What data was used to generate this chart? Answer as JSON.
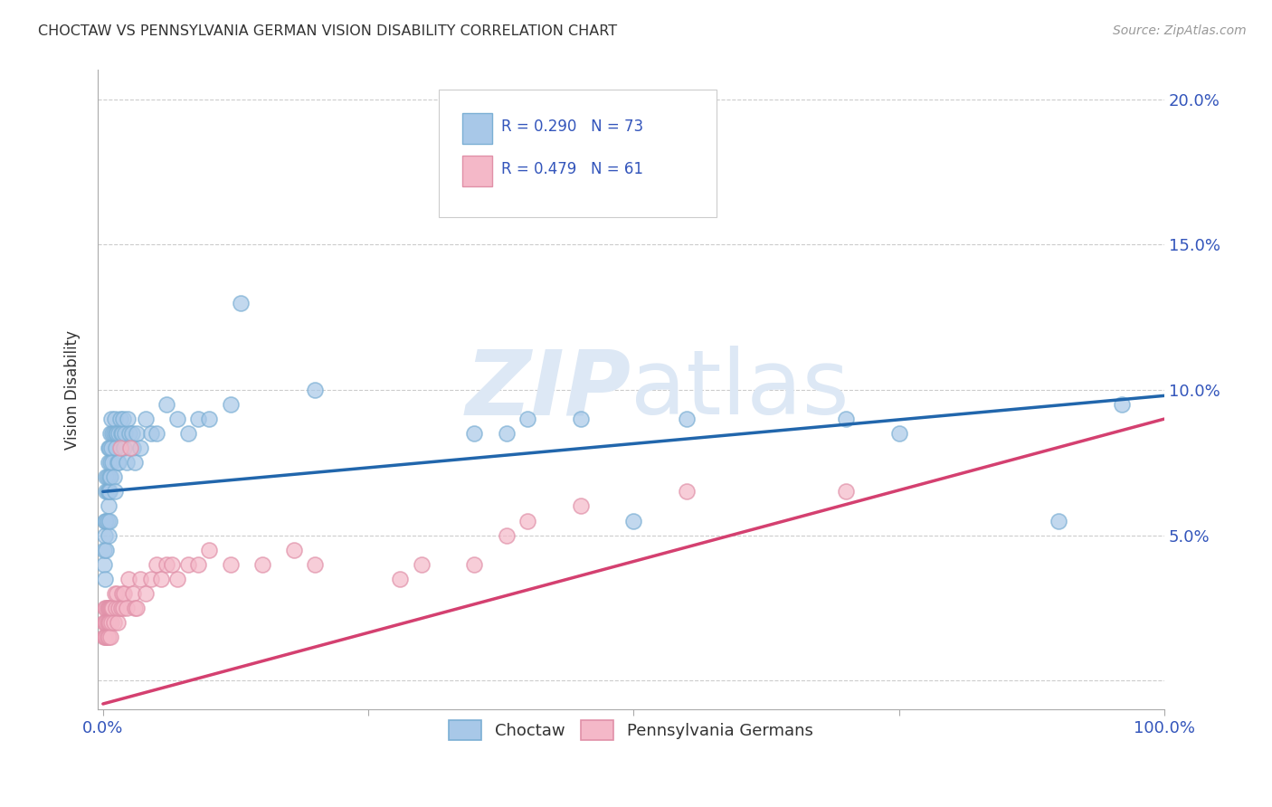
{
  "title": "CHOCTAW VS PENNSYLVANIA GERMAN VISION DISABILITY CORRELATION CHART",
  "source": "Source: ZipAtlas.com",
  "ylabel": "Vision Disability",
  "xlim": [
    -0.005,
    1.0
  ],
  "ylim": [
    -0.01,
    0.21
  ],
  "choctaw_R": 0.29,
  "choctaw_N": 73,
  "pg_R": 0.479,
  "pg_N": 61,
  "choctaw_color": "#a8c8e8",
  "choctaw_edge": "#7bafd4",
  "pg_color": "#f4b8c8",
  "pg_edge": "#e090a8",
  "choctaw_line_color": "#2166ac",
  "pg_line_color": "#d44070",
  "watermark_color": "#dde8f5",
  "background_color": "#ffffff",
  "grid_color": "#cccccc",
  "axis_label_color": "#3355bb",
  "choctaw_intercept": 0.065,
  "choctaw_slope": 0.033,
  "pg_intercept": -0.008,
  "pg_slope": 0.098,
  "choctaw_x": [
    0.001,
    0.001,
    0.002,
    0.002,
    0.002,
    0.003,
    0.003,
    0.003,
    0.003,
    0.004,
    0.004,
    0.004,
    0.005,
    0.005,
    0.005,
    0.005,
    0.005,
    0.006,
    0.006,
    0.006,
    0.006,
    0.007,
    0.007,
    0.007,
    0.008,
    0.008,
    0.009,
    0.009,
    0.01,
    0.01,
    0.011,
    0.011,
    0.012,
    0.012,
    0.013,
    0.014,
    0.015,
    0.015,
    0.016,
    0.017,
    0.018,
    0.019,
    0.02,
    0.021,
    0.022,
    0.023,
    0.025,
    0.027,
    0.028,
    0.03,
    0.032,
    0.035,
    0.04,
    0.045,
    0.05,
    0.06,
    0.07,
    0.08,
    0.09,
    0.1,
    0.12,
    0.13,
    0.2,
    0.35,
    0.38,
    0.4,
    0.45,
    0.5,
    0.55,
    0.7,
    0.75,
    0.9,
    0.96
  ],
  "choctaw_y": [
    0.04,
    0.045,
    0.05,
    0.055,
    0.035,
    0.055,
    0.07,
    0.065,
    0.045,
    0.065,
    0.07,
    0.055,
    0.06,
    0.075,
    0.08,
    0.05,
    0.065,
    0.065,
    0.08,
    0.055,
    0.07,
    0.075,
    0.085,
    0.07,
    0.08,
    0.09,
    0.075,
    0.085,
    0.07,
    0.085,
    0.065,
    0.09,
    0.085,
    0.08,
    0.085,
    0.075,
    0.085,
    0.075,
    0.09,
    0.085,
    0.085,
    0.09,
    0.08,
    0.085,
    0.075,
    0.09,
    0.085,
    0.085,
    0.08,
    0.075,
    0.085,
    0.08,
    0.09,
    0.085,
    0.085,
    0.095,
    0.09,
    0.085,
    0.09,
    0.09,
    0.095,
    0.13,
    0.1,
    0.085,
    0.085,
    0.09,
    0.09,
    0.055,
    0.09,
    0.09,
    0.085,
    0.055,
    0.095
  ],
  "pg_x": [
    0.001,
    0.001,
    0.002,
    0.002,
    0.002,
    0.003,
    0.003,
    0.003,
    0.004,
    0.004,
    0.004,
    0.005,
    0.005,
    0.005,
    0.006,
    0.006,
    0.007,
    0.007,
    0.008,
    0.008,
    0.009,
    0.01,
    0.011,
    0.012,
    0.013,
    0.014,
    0.015,
    0.016,
    0.017,
    0.018,
    0.019,
    0.02,
    0.022,
    0.024,
    0.026,
    0.028,
    0.03,
    0.032,
    0.035,
    0.04,
    0.045,
    0.05,
    0.055,
    0.06,
    0.065,
    0.07,
    0.08,
    0.09,
    0.1,
    0.12,
    0.15,
    0.18,
    0.2,
    0.28,
    0.3,
    0.35,
    0.38,
    0.4,
    0.45,
    0.55,
    0.7
  ],
  "pg_y": [
    0.02,
    0.015,
    0.025,
    0.015,
    0.02,
    0.025,
    0.015,
    0.02,
    0.025,
    0.02,
    0.015,
    0.025,
    0.02,
    0.015,
    0.025,
    0.02,
    0.025,
    0.015,
    0.025,
    0.02,
    0.025,
    0.02,
    0.03,
    0.025,
    0.03,
    0.02,
    0.025,
    0.08,
    0.025,
    0.03,
    0.025,
    0.03,
    0.025,
    0.035,
    0.08,
    0.03,
    0.025,
    0.025,
    0.035,
    0.03,
    0.035,
    0.04,
    0.035,
    0.04,
    0.04,
    0.035,
    0.04,
    0.04,
    0.045,
    0.04,
    0.04,
    0.045,
    0.04,
    0.035,
    0.04,
    0.04,
    0.05,
    0.055,
    0.06,
    0.065,
    0.065
  ],
  "yticks": [
    0.0,
    0.05,
    0.1,
    0.15,
    0.2
  ],
  "ytick_labels": [
    "",
    "5.0%",
    "10.0%",
    "15.0%",
    "20.0%"
  ]
}
